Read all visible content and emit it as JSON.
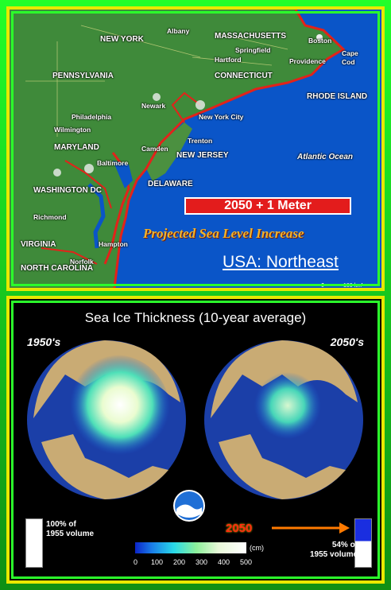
{
  "map": {
    "labels": {
      "new_york": "NEW YORK",
      "albany": "Albany",
      "massachusetts": "MASSACHUSETTS",
      "boston": "Boston",
      "springfield": "Springfield",
      "cape_cod": "Cape\nCod",
      "hartford": "Hartford",
      "providence": "Providence",
      "pennsylvania": "PENNSYLVANIA",
      "connecticut": "CONNECTICUT",
      "rhode_island": "RHODE ISLAND",
      "newark": "Newark",
      "philadelphia": "Philadelphia",
      "new_york_city": "New York City",
      "wilmington": "Wilmington",
      "trenton": "Trenton",
      "maryland": "MARYLAND",
      "camden": "Camden",
      "new_jersey": "NEW JERSEY",
      "atlantic_ocean": "Atlantic Ocean",
      "baltimore": "Baltimore",
      "washington_dc": "WASHINGTON DC",
      "delaware": "DELAWARE",
      "richmond": "Richmond",
      "virginia": "VIRGINIA",
      "hampton": "Hampton",
      "norfolk": "Norfolk",
      "north_carolina": "NORTH CAROLINA"
    },
    "headline": "2050 + 1  Meter",
    "subtitle": "Projected Sea Level Increase",
    "region": "USA: Northeast",
    "scale": {
      "zero": "0",
      "distance": "100 km"
    },
    "colors": {
      "ocean": "#0a55c8",
      "land": "#3f8a3a",
      "flood": "#e2231a",
      "frame": "#e8e800",
      "border": "#2bff2b"
    }
  },
  "ice": {
    "title": "Sea Ice Thickness (10-year average)",
    "left_decade": "1950's",
    "right_decade": "2050's",
    "left_volume": "100% of\n1955 volume",
    "right_volume": "54% of\n1955 volume",
    "year": "2050",
    "unit": "(cm)",
    "colorbar_ticks": [
      "0",
      "100",
      "200",
      "300",
      "400",
      "500"
    ],
    "logo": "noaa-logo",
    "colors": {
      "land": "#c9ab74",
      "water": "#1b3fa8",
      "ice": "#ffffff",
      "arrow": "#ff7a00"
    }
  }
}
